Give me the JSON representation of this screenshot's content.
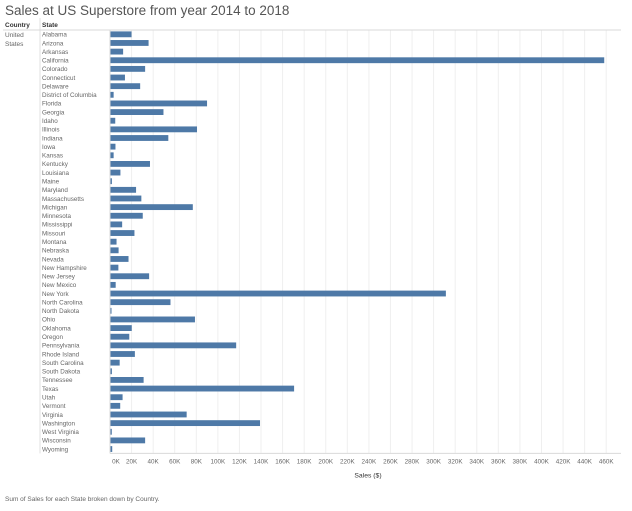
{
  "title": "Sales at US Superstore from year 2014 to 2018",
  "footnote": "Sum of Sales for each State broken down by Country.",
  "colors": {
    "bar": "#4e79a7",
    "grid": "#efefef",
    "divider": "#d9d9d9",
    "header_text": "#333333",
    "label_text": "#666666"
  },
  "chart_data": {
    "type": "bar",
    "orientation": "horizontal",
    "row_headers": [
      "Country",
      "State"
    ],
    "country": [
      "United",
      "States"
    ],
    "xlabel": "Sales ($)",
    "xlim": [
      0,
      470000
    ],
    "x_ticks": [
      {
        "value": 0,
        "label": "0K"
      },
      {
        "value": 20000,
        "label": "20K"
      },
      {
        "value": 40000,
        "label": "40K"
      },
      {
        "value": 60000,
        "label": "60K"
      },
      {
        "value": 80000,
        "label": "80K"
      },
      {
        "value": 100000,
        "label": "100K"
      },
      {
        "value": 120000,
        "label": "120K"
      },
      {
        "value": 140000,
        "label": "140K"
      },
      {
        "value": 160000,
        "label": "160K"
      },
      {
        "value": 180000,
        "label": "180K"
      },
      {
        "value": 200000,
        "label": "200K"
      },
      {
        "value": 220000,
        "label": "220K"
      },
      {
        "value": 240000,
        "label": "240K"
      },
      {
        "value": 260000,
        "label": "260K"
      },
      {
        "value": 280000,
        "label": "280K"
      },
      {
        "value": 300000,
        "label": "300K"
      },
      {
        "value": 320000,
        "label": "320K"
      },
      {
        "value": 340000,
        "label": "340K"
      },
      {
        "value": 360000,
        "label": "360K"
      },
      {
        "value": 380000,
        "label": "380K"
      },
      {
        "value": 400000,
        "label": "400K"
      },
      {
        "value": 420000,
        "label": "420K"
      },
      {
        "value": 440000,
        "label": "440K"
      },
      {
        "value": 460000,
        "label": "460K"
      }
    ],
    "grid": true,
    "categories": [
      "Alabama",
      "Arizona",
      "Arkansas",
      "California",
      "Colorado",
      "Connecticut",
      "Delaware",
      "District of Columbia",
      "Florida",
      "Georgia",
      "Idaho",
      "Illinois",
      "Indiana",
      "Iowa",
      "Kansas",
      "Kentucky",
      "Louisiana",
      "Maine",
      "Maryland",
      "Massachusetts",
      "Michigan",
      "Minnesota",
      "Mississippi",
      "Missouri",
      "Montana",
      "Nebraska",
      "Nevada",
      "New Hampshire",
      "New Jersey",
      "New Mexico",
      "New York",
      "North Carolina",
      "North Dakota",
      "Ohio",
      "Oklahoma",
      "Oregon",
      "Pennsylvania",
      "Rhode Island",
      "South Carolina",
      "South Dakota",
      "Tennessee",
      "Texas",
      "Utah",
      "Vermont",
      "Virginia",
      "Washington",
      "West Virginia",
      "Wisconsin",
      "Wyoming"
    ],
    "values": [
      19500,
      35300,
      11700,
      457700,
      32100,
      13400,
      27500,
      2900,
      89500,
      49100,
      4400,
      80200,
      53600,
      4600,
      2900,
      36600,
      9200,
      1300,
      23700,
      28600,
      76300,
      29900,
      10800,
      22200,
      5600,
      7500,
      16700,
      7300,
      35800,
      4800,
      310900,
      55600,
      900,
      78300,
      19700,
      17400,
      116500,
      22600,
      8500,
      1300,
      30700,
      170200,
      11200,
      9000,
      70600,
      138600,
      1200,
      32100,
      1600
    ]
  }
}
